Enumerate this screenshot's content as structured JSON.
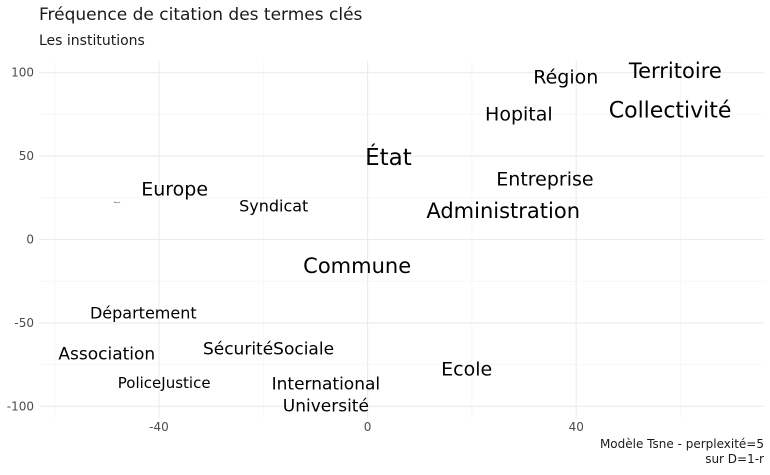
{
  "chart_data": {
    "type": "scatter",
    "title": "Fréquence de citation des termes clés",
    "subtitle": "Les institutions",
    "caption_lines": [
      "Modèle Tsne - perplexité=5",
      "sur D=1-r"
    ],
    "xlabel": "",
    "ylabel": "",
    "xlim": [
      -63,
      76
    ],
    "ylim": [
      -107,
      107
    ],
    "x_ticks": [
      -40,
      0,
      40
    ],
    "y_ticks": [
      -100,
      -50,
      0,
      50,
      100
    ],
    "grid": true,
    "points": [
      {
        "label": "Territoire",
        "x": 59,
        "y": 101,
        "size": 21
      },
      {
        "label": "Région",
        "x": 38,
        "y": 97,
        "size": 19
      },
      {
        "label": "Hopital",
        "x": 29,
        "y": 75,
        "size": 19
      },
      {
        "label": "Collectivité",
        "x": 58,
        "y": 77,
        "size": 22
      },
      {
        "label": "État",
        "x": 4,
        "y": 49,
        "size": 23
      },
      {
        "label": "Entreprise",
        "x": 34,
        "y": 36,
        "size": 19
      },
      {
        "label": "Europe",
        "x": -37,
        "y": 30,
        "size": 19
      },
      {
        "label": "Syndicat",
        "x": -18,
        "y": 20,
        "size": 16
      },
      {
        "label": "Administration",
        "x": 26,
        "y": 17,
        "size": 21
      },
      {
        "label": "Commune",
        "x": -2,
        "y": -16,
        "size": 21
      },
      {
        "label": "Département",
        "x": -43,
        "y": -44,
        "size": 16
      },
      {
        "label": "SécuritéSociale",
        "x": -19,
        "y": -66,
        "size": 17
      },
      {
        "label": "Association",
        "x": -50,
        "y": -69,
        "size": 17
      },
      {
        "label": "Ecole",
        "x": 19,
        "y": -78,
        "size": 19
      },
      {
        "label": "PoliceJustice",
        "x": -39,
        "y": -86,
        "size": 15
      },
      {
        "label": "International",
        "x": -8,
        "y": -87,
        "size": 17
      },
      {
        "label": "Université",
        "x": -8,
        "y": -100,
        "size": 17
      },
      {
        "label": "Avenir",
        "x": -48,
        "y": 22,
        "size": 2
      }
    ]
  }
}
